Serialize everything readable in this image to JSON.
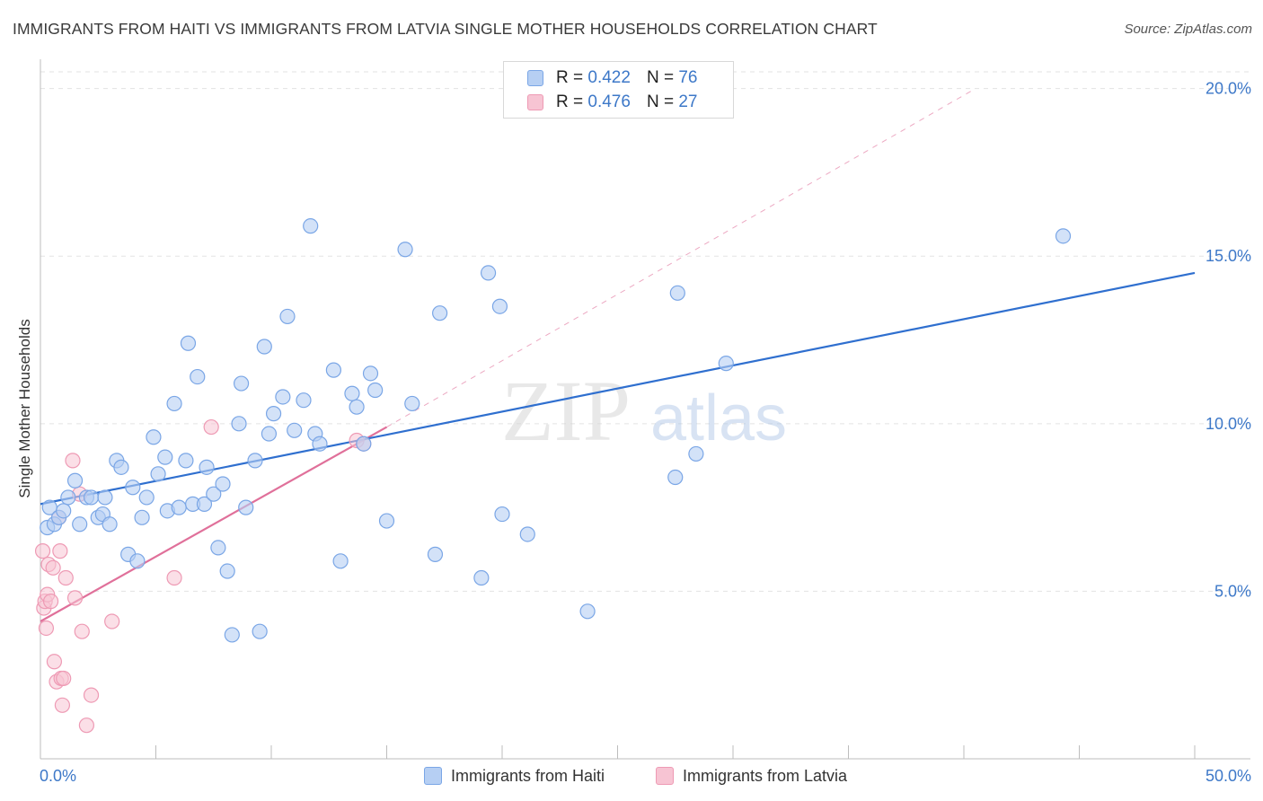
{
  "title": "IMMIGRANTS FROM HAITI VS IMMIGRANTS FROM LATVIA SINGLE MOTHER HOUSEHOLDS CORRELATION CHART",
  "source": "Source: ZipAtlas.com",
  "watermark": {
    "zip": "ZIP",
    "atlas": "atlas"
  },
  "legend": {
    "rows": [
      {
        "r_label": "R =",
        "r_value": "0.422",
        "n_label": "N =",
        "n_value": "76"
      },
      {
        "r_label": "R =",
        "r_value": "0.476",
        "n_label": "N =",
        "n_value": "27"
      }
    ]
  },
  "bottom_legend": {
    "haiti": "Immigrants from Haiti",
    "latvia": "Immigrants from Latvia"
  },
  "colors": {
    "haiti_fill": "#b6cff3",
    "haiti_stroke": "#7aa6e6",
    "haiti_line": "#2f6fcf",
    "latvia_fill": "#f7c4d3",
    "latvia_stroke": "#ee9ab4",
    "latvia_line": "#e0709a",
    "tick_text": "#3d78c8",
    "grid": "#e3e3e3"
  },
  "chart_data": {
    "type": "scatter",
    "title": "IMMIGRANTS FROM HAITI VS IMMIGRANTS FROM LATVIA SINGLE MOTHER HOUSEHOLDS CORRELATION CHART",
    "xlabel": "",
    "ylabel": "Single Mother Households",
    "xlim": [
      0,
      50
    ],
    "ylim": [
      0,
      20.5
    ],
    "x_tick_labels": [
      "0.0%",
      "50.0%"
    ],
    "y_ticks": [
      5,
      10,
      15,
      20
    ],
    "y_tick_labels": [
      "5.0%",
      "10.0%",
      "15.0%",
      "20.0%"
    ],
    "grid": true,
    "legend_position": "top-center",
    "series": [
      {
        "name": "Immigrants from Haiti",
        "r": 0.422,
        "n": 76,
        "trend": {
          "x": [
            0,
            50
          ],
          "y": [
            7.6,
            14.5
          ]
        },
        "points": [
          [
            0.3,
            6.9
          ],
          [
            0.4,
            7.5
          ],
          [
            0.6,
            7.0
          ],
          [
            0.8,
            7.2
          ],
          [
            1.0,
            7.4
          ],
          [
            1.2,
            7.8
          ],
          [
            1.5,
            8.3
          ],
          [
            1.7,
            7.0
          ],
          [
            2.0,
            7.8
          ],
          [
            2.2,
            7.8
          ],
          [
            2.5,
            7.2
          ],
          [
            2.7,
            7.3
          ],
          [
            2.8,
            7.8
          ],
          [
            3.0,
            7.0
          ],
          [
            3.3,
            8.9
          ],
          [
            3.5,
            8.7
          ],
          [
            3.8,
            6.1
          ],
          [
            4.0,
            8.1
          ],
          [
            4.2,
            5.9
          ],
          [
            4.4,
            7.2
          ],
          [
            4.6,
            7.8
          ],
          [
            4.9,
            9.6
          ],
          [
            5.1,
            8.5
          ],
          [
            5.4,
            9.0
          ],
          [
            5.5,
            7.4
          ],
          [
            5.8,
            10.6
          ],
          [
            6.0,
            7.5
          ],
          [
            6.3,
            8.9
          ],
          [
            6.4,
            12.4
          ],
          [
            6.6,
            7.6
          ],
          [
            6.8,
            11.4
          ],
          [
            7.1,
            7.6
          ],
          [
            7.2,
            8.7
          ],
          [
            7.5,
            7.9
          ],
          [
            7.7,
            6.3
          ],
          [
            7.9,
            8.2
          ],
          [
            8.1,
            5.6
          ],
          [
            8.3,
            3.7
          ],
          [
            8.6,
            10.0
          ],
          [
            8.7,
            11.2
          ],
          [
            8.9,
            7.5
          ],
          [
            9.3,
            8.9
          ],
          [
            9.5,
            3.8
          ],
          [
            9.7,
            12.3
          ],
          [
            9.9,
            9.7
          ],
          [
            10.1,
            10.3
          ],
          [
            10.5,
            10.8
          ],
          [
            10.7,
            13.2
          ],
          [
            11.0,
            9.8
          ],
          [
            11.4,
            10.7
          ],
          [
            11.7,
            15.9
          ],
          [
            11.9,
            9.7
          ],
          [
            12.1,
            9.4
          ],
          [
            12.7,
            11.6
          ],
          [
            13.0,
            5.9
          ],
          [
            13.5,
            10.9
          ],
          [
            13.7,
            10.5
          ],
          [
            14.0,
            9.4
          ],
          [
            14.3,
            11.5
          ],
          [
            14.5,
            11.0
          ],
          [
            15.0,
            7.1
          ],
          [
            15.8,
            15.2
          ],
          [
            16.1,
            10.6
          ],
          [
            17.1,
            6.1
          ],
          [
            17.3,
            13.3
          ],
          [
            19.1,
            5.4
          ],
          [
            19.4,
            14.5
          ],
          [
            19.9,
            13.5
          ],
          [
            20.0,
            7.3
          ],
          [
            21.1,
            6.7
          ],
          [
            23.7,
            4.4
          ],
          [
            27.5,
            8.4
          ],
          [
            27.6,
            13.9
          ],
          [
            28.4,
            9.1
          ],
          [
            29.7,
            11.8
          ],
          [
            44.3,
            15.6
          ]
        ]
      },
      {
        "name": "Immigrants from Latvia",
        "r": 0.476,
        "n": 27,
        "trend": {
          "x": [
            0,
            15
          ],
          "y": [
            4.1,
            9.9
          ]
        },
        "trend_extended": {
          "x": [
            15,
            40.5
          ],
          "y": [
            9.9,
            20.0
          ]
        },
        "points": [
          [
            0.1,
            6.2
          ],
          [
            0.15,
            4.5
          ],
          [
            0.2,
            4.7
          ],
          [
            0.3,
            4.9
          ],
          [
            0.35,
            5.8
          ],
          [
            0.45,
            4.7
          ],
          [
            0.55,
            5.7
          ],
          [
            0.6,
            2.9
          ],
          [
            0.7,
            2.3
          ],
          [
            0.8,
            7.2
          ],
          [
            0.85,
            6.2
          ],
          [
            0.9,
            2.4
          ],
          [
            0.95,
            1.6
          ],
          [
            1.0,
            2.4
          ],
          [
            1.1,
            5.4
          ],
          [
            1.4,
            8.9
          ],
          [
            1.5,
            4.8
          ],
          [
            1.7,
            7.9
          ],
          [
            1.8,
            3.8
          ],
          [
            2.0,
            1.0
          ],
          [
            2.2,
            1.9
          ],
          [
            3.1,
            4.1
          ],
          [
            5.8,
            5.4
          ],
          [
            7.4,
            9.9
          ],
          [
            13.7,
            9.5
          ],
          [
            14.0,
            9.4
          ],
          [
            0.25,
            3.9
          ]
        ]
      }
    ]
  }
}
